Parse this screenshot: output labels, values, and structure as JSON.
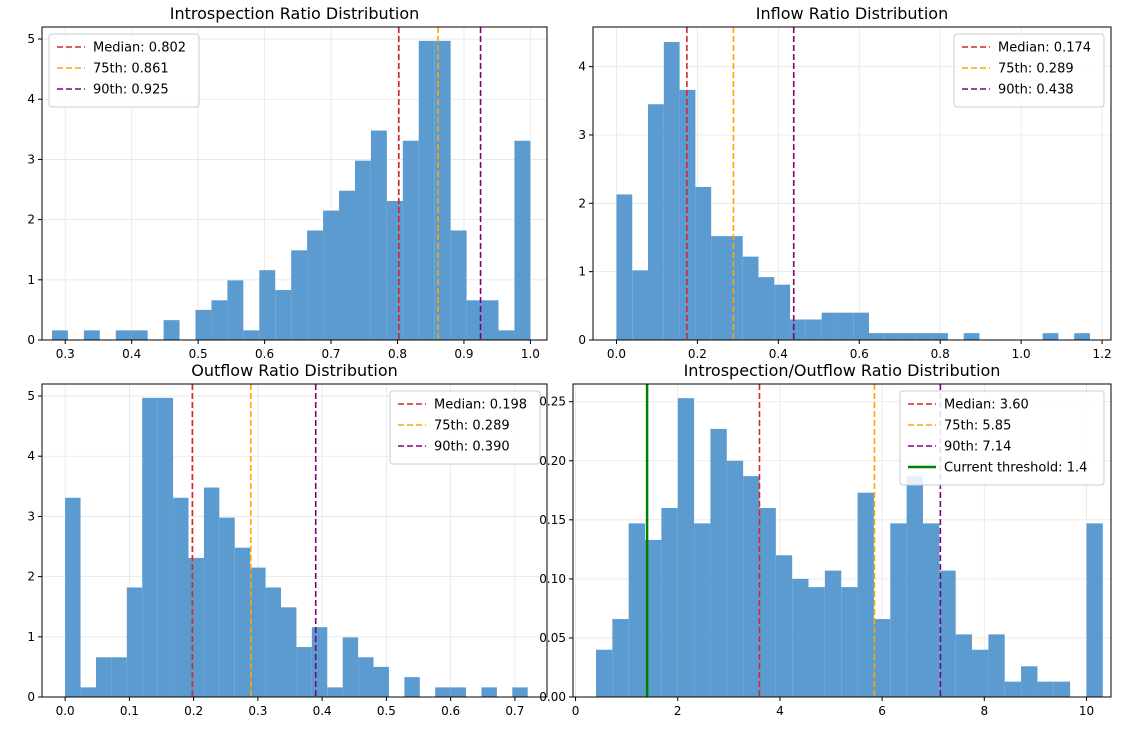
{
  "chart_data": [
    {
      "type": "bar",
      "title": "Introspection Ratio Distribution",
      "xlim": [
        0.265,
        1.025
      ],
      "ylim": [
        0,
        5.2
      ],
      "x_ticks": [
        0.3,
        0.4,
        0.5,
        0.6,
        0.7,
        0.8,
        0.9,
        1.0
      ],
      "x_tick_labels": [
        "0.3",
        "0.4",
        "0.5",
        "0.6",
        "0.7",
        "0.8",
        "0.9",
        "1.0"
      ],
      "y_ticks": [
        0,
        1,
        2,
        3,
        4,
        5
      ],
      "y_tick_labels": [
        "0",
        "1",
        "2",
        "3",
        "4",
        "5"
      ],
      "grid": true,
      "legend_position": "top-left",
      "bins": {
        "start": 0.28,
        "width": 0.024,
        "values": [
          0.16,
          0,
          0.16,
          0,
          0.16,
          0.16,
          0,
          0.33,
          0,
          0.5,
          0.66,
          0.99,
          0.16,
          1.16,
          0.83,
          1.49,
          1.82,
          2.15,
          2.48,
          2.98,
          3.48,
          2.31,
          3.31,
          4.97,
          4.97,
          1.82,
          0.66,
          0.66,
          0.16,
          3.31
        ]
      },
      "lines": [
        {
          "x": 0.802,
          "label": "Median: 0.802",
          "color": "#d62728"
        },
        {
          "x": 0.861,
          "label": "75th: 0.861",
          "color": "#ffa500"
        },
        {
          "x": 0.925,
          "label": "90th: 0.925",
          "color": "#800080"
        }
      ]
    },
    {
      "type": "bar",
      "title": "Inflow Ratio Distribution",
      "xlim": [
        -0.058,
        1.222
      ],
      "ylim": [
        0,
        4.58
      ],
      "x_ticks": [
        0.0,
        0.2,
        0.4,
        0.6,
        0.8,
        1.0,
        1.2
      ],
      "x_tick_labels": [
        "0.0",
        "0.2",
        "0.4",
        "0.6",
        "0.8",
        "1.0",
        "1.2"
      ],
      "y_ticks": [
        0,
        1,
        2,
        3,
        4
      ],
      "y_tick_labels": [
        "0",
        "1",
        "2",
        "3",
        "4"
      ],
      "grid": true,
      "legend_position": "top-right",
      "bins": {
        "start": 0.0,
        "width": 0.039,
        "values": [
          2.13,
          1.02,
          3.45,
          4.36,
          3.66,
          2.24,
          1.52,
          1.52,
          1.22,
          0.92,
          0.81,
          0.3,
          0.3,
          0.4,
          0.4,
          0.4,
          0.1,
          0.1,
          0.1,
          0.1,
          0.1,
          0,
          0.1,
          0,
          0,
          0,
          0,
          0.1,
          0,
          0.1
        ]
      },
      "lines": [
        {
          "x": 0.174,
          "label": "Median: 0.174",
          "color": "#d62728"
        },
        {
          "x": 0.289,
          "label": "75th: 0.289",
          "color": "#ffa500"
        },
        {
          "x": 0.438,
          "label": "90th: 0.438",
          "color": "#800080"
        }
      ]
    },
    {
      "type": "bar",
      "title": "Outflow Ratio Distribution",
      "xlim": [
        -0.036,
        0.75
      ],
      "ylim": [
        0,
        5.2
      ],
      "x_ticks": [
        0.0,
        0.1,
        0.2,
        0.3,
        0.4,
        0.5,
        0.6,
        0.7
      ],
      "x_tick_labels": [
        "0.0",
        "0.1",
        "0.2",
        "0.3",
        "0.4",
        "0.5",
        "0.6",
        "0.7"
      ],
      "y_ticks": [
        0,
        1,
        2,
        3,
        4,
        5
      ],
      "y_tick_labels": [
        "0",
        "1",
        "2",
        "3",
        "4",
        "5"
      ],
      "grid": true,
      "legend_position": "top-right",
      "bins": {
        "start": 0.0,
        "width": 0.024,
        "values": [
          3.31,
          0.16,
          0.66,
          0.66,
          1.82,
          4.97,
          4.97,
          3.31,
          2.31,
          3.48,
          2.98,
          2.48,
          2.15,
          1.82,
          1.49,
          0.83,
          1.16,
          0.16,
          0.99,
          0.66,
          0.5,
          0,
          0.33,
          0,
          0.16,
          0.16,
          0,
          0.16,
          0,
          0.16
        ]
      },
      "lines": [
        {
          "x": 0.198,
          "label": "Median: 0.198",
          "color": "#d62728"
        },
        {
          "x": 0.289,
          "label": "75th: 0.289",
          "color": "#ffa500"
        },
        {
          "x": 0.39,
          "label": "90th: 0.390",
          "color": "#800080"
        }
      ]
    },
    {
      "type": "bar",
      "title": "Introspection/Outflow Ratio Distribution",
      "xlim": [
        -0.05,
        10.48
      ],
      "ylim": [
        0,
        0.265
      ],
      "x_ticks": [
        0,
        2,
        4,
        6,
        8,
        10
      ],
      "x_tick_labels": [
        "0",
        "2",
        "4",
        "6",
        "8",
        "10"
      ],
      "y_ticks": [
        0,
        0.05,
        0.1,
        0.15,
        0.2,
        0.25
      ],
      "y_tick_labels": [
        "0.00",
        "0.05",
        "0.10",
        "0.15",
        "0.20",
        "0.25"
      ],
      "grid": true,
      "legend_position": "top-right",
      "bins": {
        "start": 0.4,
        "width": 0.32,
        "values": [
          0.04,
          0.066,
          0.147,
          0.133,
          0.16,
          0.253,
          0.147,
          0.227,
          0.2,
          0.187,
          0.16,
          0.12,
          0.1,
          0.093,
          0.107,
          0.093,
          0.173,
          0.066,
          0.147,
          0.187,
          0.147,
          0.107,
          0.053,
          0.04,
          0.053,
          0.013,
          0.026,
          0.013,
          0.013,
          0,
          0.147
        ]
      },
      "lines": [
        {
          "x": 3.6,
          "label": "Median: 3.60",
          "color": "#d62728"
        },
        {
          "x": 5.85,
          "label": "75th: 5.85",
          "color": "#ffa500"
        },
        {
          "x": 7.14,
          "label": "90th: 7.14",
          "color": "#800080"
        },
        {
          "x": 1.4,
          "label": "Current threshold: 1.4",
          "color": "#008000",
          "solid": true
        }
      ]
    }
  ],
  "colors": {
    "bar": "#5b9bd0",
    "grid": "#e6e6e6",
    "axis": "#000000"
  }
}
